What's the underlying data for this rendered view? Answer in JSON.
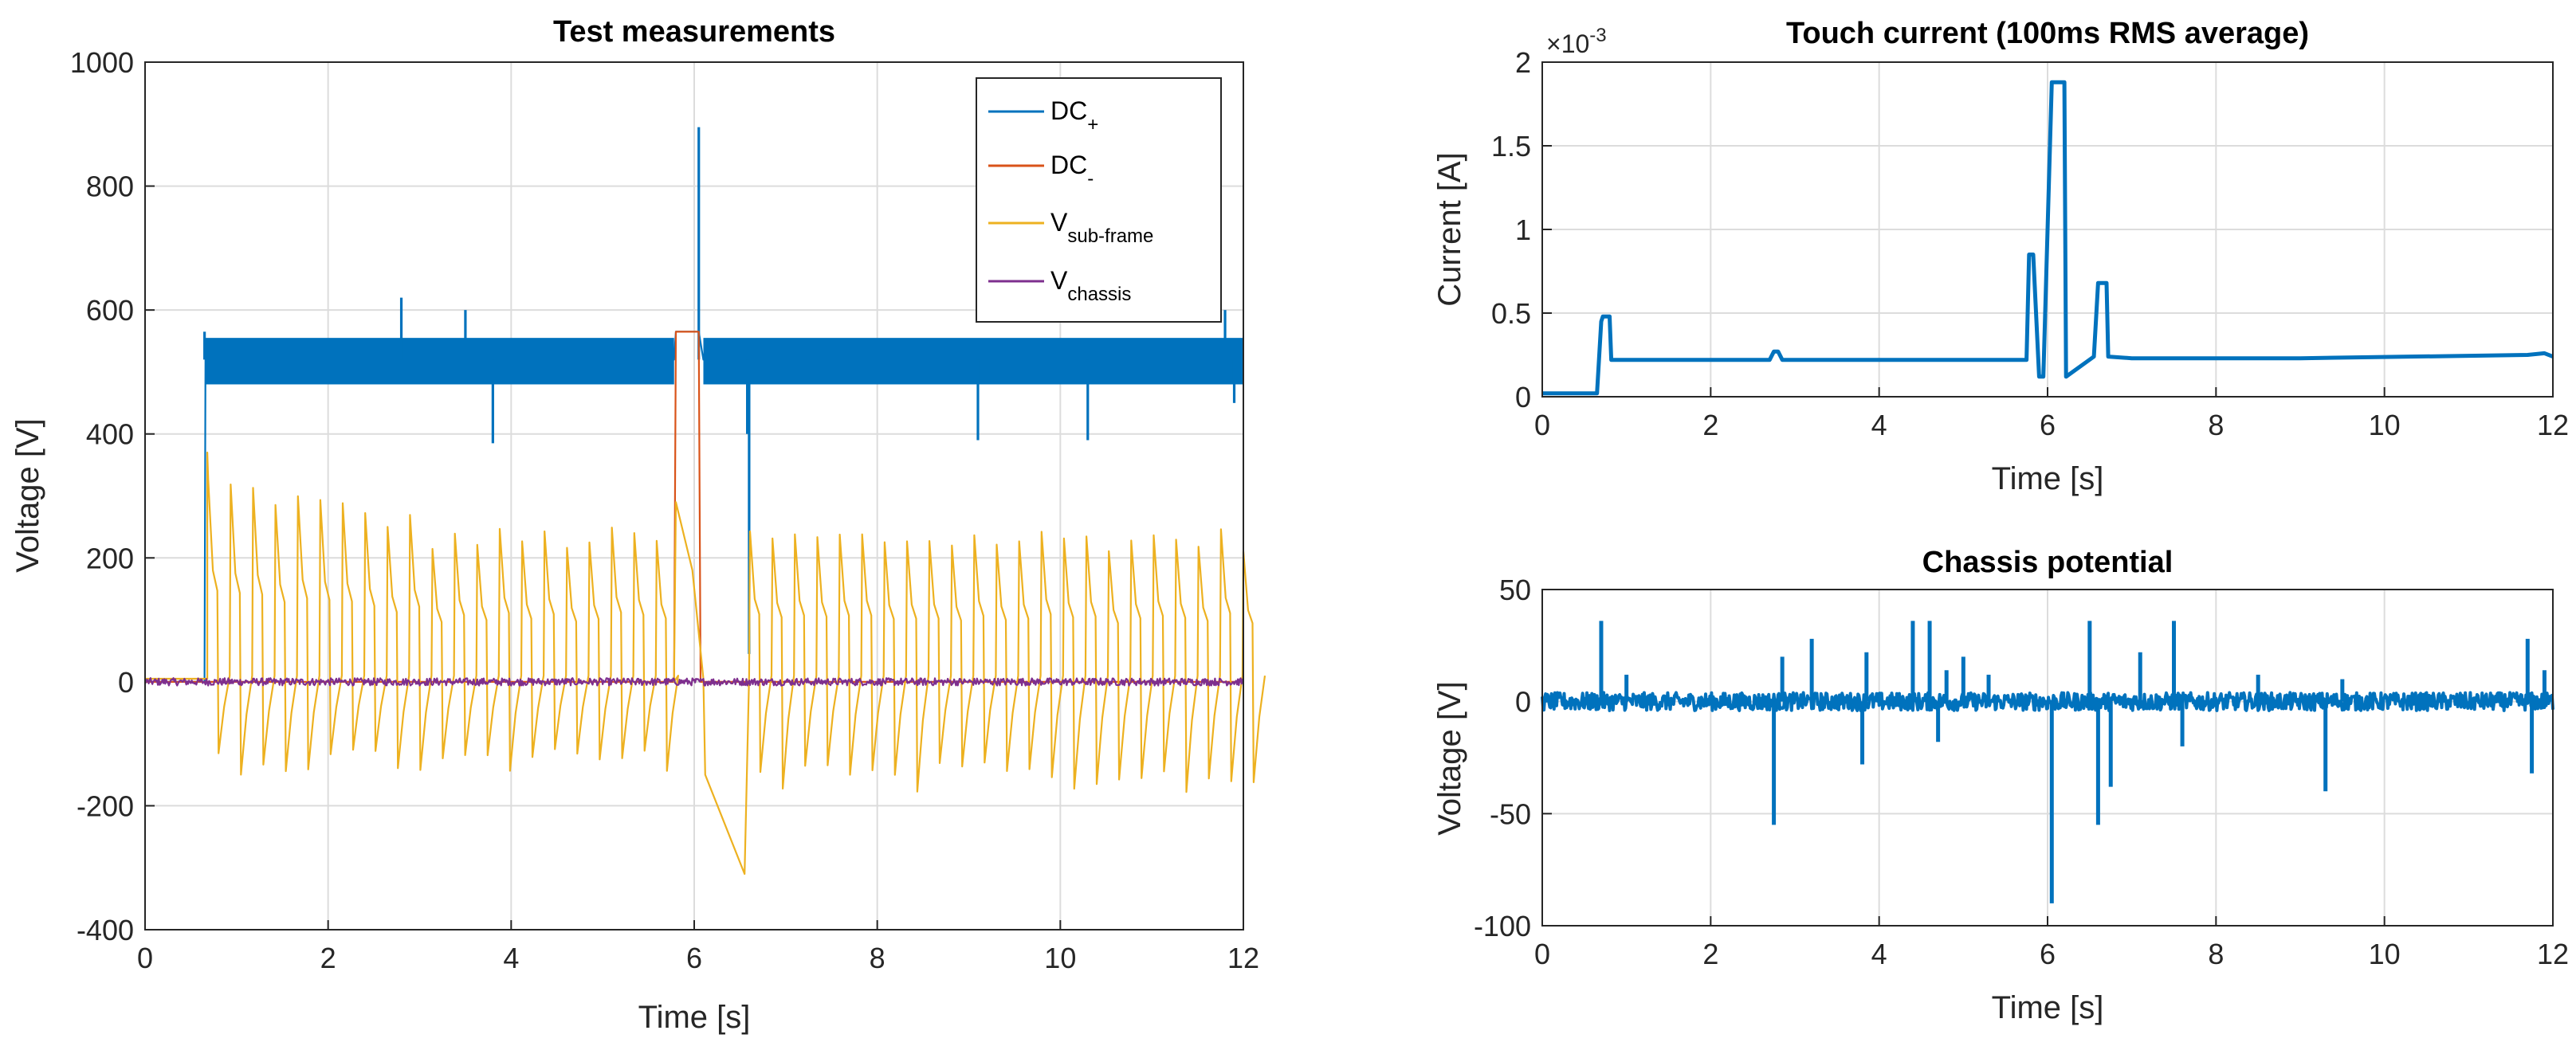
{
  "chart_data": [
    {
      "type": "line",
      "title": "Test measurements",
      "xlabel": "Time [s]",
      "ylabel": "Voltage [V]",
      "xlim": [
        0,
        12
      ],
      "ylim": [
        -400,
        1000
      ],
      "xticks": [
        "0",
        "2",
        "4",
        "6",
        "8",
        "10",
        "12"
      ],
      "yticks": [
        "-400",
        "-200",
        "0",
        "200",
        "400",
        "600",
        "800",
        "1000"
      ],
      "grid": true,
      "legend_position": "top-right",
      "series": [
        {
          "name": "DC+",
          "legend_main": "DC",
          "legend_sub": "+",
          "color": "#0072BD",
          "band_low": 480,
          "band_high": 555,
          "x": [
            0,
            0.65,
            0.66,
            5.78,
            5.8,
            6.05,
            6.1,
            6.55,
            6.58,
            12
          ],
          "values": [
            0,
            0,
            520,
            520,
            565,
            565,
            520,
            520,
            520,
            520
          ],
          "spikes": [
            [
              0.65,
              565
            ],
            [
              2.8,
              620
            ],
            [
              3.5,
              600
            ],
            [
              3.8,
              385
            ],
            [
              6.05,
              895
            ],
            [
              6.58,
              400
            ],
            [
              6.6,
              45
            ],
            [
              9.1,
              390
            ],
            [
              10.3,
              390
            ],
            [
              11.8,
              600
            ],
            [
              11.9,
              450
            ]
          ]
        },
        {
          "name": "DC-",
          "legend_main": "DC",
          "legend_sub": "-",
          "color": "#D95319",
          "x": [
            0,
            5.78,
            5.8,
            6.05,
            6.07,
            12
          ],
          "values": [
            0,
            0,
            565,
            565,
            0,
            0
          ]
        },
        {
          "name": "Vsub-frame",
          "legend_main": "V",
          "legend_sub": "sub-frame",
          "color": "#EDB120",
          "x": [
            0,
            0.65,
            0.68,
            0.9,
            1.0,
            1.3,
            1.6,
            1.9,
            2.2,
            2.6,
            3.0,
            3.4,
            3.8,
            4.2,
            4.6,
            5.0,
            5.4,
            5.78,
            5.8,
            6.0,
            6.1,
            6.3,
            6.5,
            6.6,
            7.0,
            7.4,
            7.8,
            8.2,
            8.6,
            9.0,
            9.4,
            9.8,
            10.2,
            10.6,
            11.0,
            11.4,
            11.8,
            11.95
          ],
          "values": [
            5,
            5,
            370,
            160,
            -60,
            300,
            -140,
            250,
            -120,
            240,
            -110,
            230,
            -100,
            240,
            -100,
            230,
            -90,
            0,
            290,
            180,
            5,
            -210,
            -310,
            10,
            210,
            -180,
            210,
            -170,
            210,
            -160,
            210,
            -160,
            210,
            -160,
            210,
            -160,
            210,
            -175
          ],
          "cycle_start": 0.68,
          "cycle_period": 0.245,
          "cycle_peak": 260,
          "cycle_trough": -130,
          "gap": [
            5.78,
            6.1
          ]
        },
        {
          "name": "Vchassis",
          "legend_main": "V",
          "legend_sub": "chassis",
          "color": "#7E2F8E",
          "x": [
            0,
            12
          ],
          "values": [
            0,
            0
          ]
        }
      ]
    },
    {
      "type": "line",
      "title": "Touch current (100ms RMS average)",
      "xlabel": "Time [s]",
      "ylabel": "Current [A]",
      "exponent_label": "×10",
      "exponent_power": "-3",
      "xlim": [
        0,
        12
      ],
      "ylim": [
        0,
        2
      ],
      "xticks": [
        "0",
        "2",
        "4",
        "6",
        "8",
        "10",
        "12"
      ],
      "yticks": [
        "0",
        "0.5",
        "1",
        "1.5",
        "2"
      ],
      "grid": true,
      "series": [
        {
          "color": "#0072BD",
          "x": [
            0,
            0.65,
            0.7,
            0.72,
            0.8,
            0.82,
            1.0,
            2.7,
            2.75,
            2.8,
            2.85,
            3.0,
            5.75,
            5.78,
            5.83,
            5.9,
            5.95,
            6.05,
            6.08,
            6.2,
            6.22,
            6.55,
            6.6,
            6.7,
            6.72,
            7.0,
            9.0,
            11.7,
            11.9,
            12
          ],
          "values": [
            0.02,
            0.02,
            0.45,
            0.48,
            0.48,
            0.22,
            0.22,
            0.22,
            0.27,
            0.27,
            0.22,
            0.22,
            0.22,
            0.85,
            0.85,
            0.12,
            0.12,
            1.88,
            1.88,
            1.88,
            0.12,
            0.24,
            0.68,
            0.68,
            0.24,
            0.23,
            0.23,
            0.25,
            0.26,
            0.24
          ]
        }
      ]
    },
    {
      "type": "line",
      "title": "Chassis potential",
      "xlabel": "Time [s]",
      "ylabel": "Voltage [V]",
      "xlim": [
        0,
        12
      ],
      "ylim": [
        -100,
        50
      ],
      "xticks": [
        "0",
        "2",
        "4",
        "6",
        "8",
        "10",
        "12"
      ],
      "yticks": [
        "-100",
        "-50",
        "0",
        "50"
      ],
      "grid": true,
      "series": [
        {
          "color": "#0072BD",
          "x": [
            0,
            12
          ],
          "values": [
            0,
            0
          ],
          "spikes": [
            [
              0.7,
              36
            ],
            [
              1.0,
              12
            ],
            [
              2.75,
              -55
            ],
            [
              2.85,
              20
            ],
            [
              3.2,
              28
            ],
            [
              3.8,
              -28
            ],
            [
              3.85,
              22
            ],
            [
              4.4,
              36
            ],
            [
              4.6,
              36
            ],
            [
              4.7,
              -18
            ],
            [
              4.8,
              14
            ],
            [
              5.0,
              20
            ],
            [
              5.3,
              12
            ],
            [
              6.05,
              -90
            ],
            [
              6.5,
              36
            ],
            [
              6.6,
              -55
            ],
            [
              6.75,
              -38
            ],
            [
              7.1,
              22
            ],
            [
              7.5,
              36
            ],
            [
              7.6,
              -20
            ],
            [
              8.5,
              12
            ],
            [
              9.3,
              -40
            ],
            [
              9.5,
              10
            ],
            [
              11.7,
              28
            ],
            [
              11.75,
              -32
            ],
            [
              11.9,
              14
            ]
          ]
        }
      ]
    }
  ]
}
